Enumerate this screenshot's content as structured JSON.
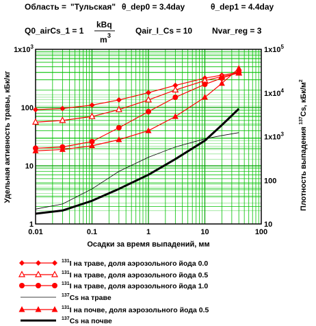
{
  "header": {
    "oblast_label": "Область = ",
    "oblast_value": "\"Тульская\"",
    "theta_dep0": "θ_dep0 = 3.4day",
    "theta_dep1": "θ_dep1 = 4.4day",
    "q0_label": "Q0_airCs_1 = 1",
    "q0_unit_num": "kBq",
    "q0_unit_den": "m",
    "q0_unit_exp": "3",
    "qair": "Qair_I_Cs = 10",
    "nvar": "Nvar_reg = 3"
  },
  "colors": {
    "grid": "#00c000",
    "red": "#ff0000",
    "black": "#000000",
    "oblast_value": "#0000cc",
    "q0_highlight": "#0000cc"
  },
  "chart_data": {
    "type": "line",
    "title": "",
    "xlabel": "Осадки за время выпадений, мм",
    "ylabel_left": "Удельная активность травы, кБк/кг",
    "ylabel_right_pre": "Плотность выпадения",
    "ylabel_right_sup": "137",
    "ylabel_right_post": "Cs, кБк/м",
    "ylabel_right_exp": "2",
    "x_scale": "log",
    "y_scale": "log",
    "xlim": [
      0.01,
      100
    ],
    "ylim_left": [
      1,
      1000
    ],
    "ylim_right": [
      10,
      100000
    ],
    "grid": true,
    "x_ticks": [
      "0.01",
      "0.1",
      "1",
      "10",
      "100"
    ],
    "y_left_ticks": [
      {
        "v": 1,
        "label": "1"
      },
      {
        "v": 10,
        "label": "10"
      },
      {
        "v": 100,
        "label": "100"
      },
      {
        "v": 1000,
        "label": "1x10",
        "sup": "3"
      }
    ],
    "y_right_ticks": [
      {
        "v": 10,
        "label": "10"
      },
      {
        "v": 100,
        "label": "100"
      },
      {
        "v": 1000,
        "label": "1x10",
        "sup": "3"
      },
      {
        "v": 10000,
        "label": "1x10",
        "sup": "4"
      },
      {
        "v": 100000,
        "label": "1x10",
        "sup": "5"
      }
    ],
    "legend_position": "bottom",
    "series": [
      {
        "name_sup": "131",
        "name": "I на траве, доля аэрозольного йода 0.0",
        "axis": "left",
        "color": "#ff0000",
        "width": 1.2,
        "marker": "diamond",
        "x": [
          0.01,
          0.03,
          0.1,
          0.3,
          1,
          3,
          10,
          20,
          40
        ],
        "y": [
          92,
          96,
          110,
          135,
          180,
          240,
          320,
          360,
          400
        ]
      },
      {
        "name_sup": "131",
        "name": "I на траве, доля аэрозольного йода 0.5",
        "axis": "left",
        "color": "#ff0000",
        "width": 1.2,
        "marker": "triangle-open",
        "x": [
          0.01,
          0.03,
          0.1,
          0.3,
          1,
          3,
          10,
          20,
          40
        ],
        "y": [
          56,
          60,
          70,
          92,
          135,
          200,
          290,
          340,
          390
        ]
      },
      {
        "name_sup": "131",
        "name": "I на траве, доля аэрозольного йода 1.0",
        "axis": "left",
        "color": "#ff0000",
        "width": 1.2,
        "marker": "circle",
        "x": [
          0.01,
          0.03,
          0.1,
          0.3,
          1,
          3,
          10,
          20,
          40
        ],
        "y": [
          20,
          21,
          26,
          45,
          85,
          150,
          250,
          320,
          400
        ]
      },
      {
        "name_sup": "137",
        "name": "Cs на траве",
        "axis": "left",
        "color": "#000000",
        "width": 0.8,
        "marker": "none",
        "x": [
          0.01,
          0.03,
          0.1,
          0.3,
          1,
          3,
          10,
          20,
          40
        ],
        "y": [
          1.8,
          2.2,
          4,
          8,
          14,
          21,
          29,
          33,
          37
        ]
      },
      {
        "name_sup": "131",
        "name": "I на почве, доля аэрозольного йода 0.5",
        "axis": "left",
        "color": "#ff0000",
        "width": 1.2,
        "marker": "triangle",
        "x": [
          0.01,
          0.03,
          0.1,
          0.3,
          1,
          3,
          10,
          20,
          40
        ],
        "y": [
          18,
          19,
          22,
          28,
          40,
          70,
          150,
          260,
          470
        ]
      },
      {
        "name_sup": "137",
        "name": "Cs на почве",
        "axis": "left",
        "color": "#000000",
        "width": 3,
        "marker": "none",
        "x": [
          0.01,
          0.03,
          0.1,
          0.3,
          1,
          3,
          10,
          20,
          40
        ],
        "y": [
          1.5,
          1.7,
          2.5,
          4,
          7,
          13,
          27,
          50,
          95
        ]
      }
    ]
  }
}
